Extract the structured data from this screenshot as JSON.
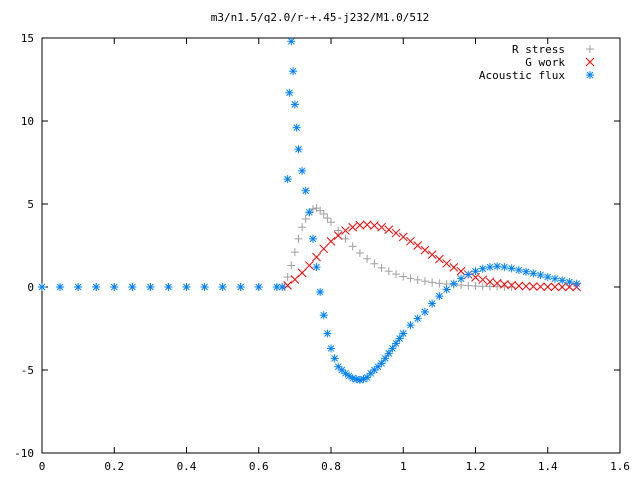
{
  "chart_data": {
    "type": "scatter",
    "title": "m3/n1.5/q2.0/r-+.45-j232/M1.0/512",
    "xlabel": "",
    "ylabel": "",
    "xlim": [
      0,
      1.6
    ],
    "ylim": [
      -10,
      15
    ],
    "x_ticks": [
      0,
      0.2,
      0.4,
      0.6,
      0.8,
      1.0,
      1.2,
      1.4,
      1.6
    ],
    "x_tick_labels": [
      "0",
      "0.2",
      "0.4",
      "0.6",
      "0.8",
      "1",
      "1.2",
      "1.4",
      "1.6"
    ],
    "y_ticks": [
      -10,
      -5,
      0,
      5,
      10,
      15
    ],
    "y_tick_labels": [
      "-10",
      "-5",
      "0",
      "5",
      "10",
      "15"
    ],
    "grid": false,
    "legend_position": "top-right",
    "series": [
      {
        "name": "R stress",
        "marker": "plus",
        "color": "#a0a0a0",
        "x": [
          0.0,
          0.05,
          0.1,
          0.15,
          0.2,
          0.25,
          0.3,
          0.35,
          0.4,
          0.45,
          0.5,
          0.55,
          0.6,
          0.65,
          0.672,
          0.68,
          0.69,
          0.7,
          0.71,
          0.72,
          0.73,
          0.74,
          0.75,
          0.76,
          0.77,
          0.78,
          0.79,
          0.8,
          0.82,
          0.84,
          0.86,
          0.88,
          0.9,
          0.92,
          0.94,
          0.96,
          0.98,
          1.0,
          1.02,
          1.04,
          1.06,
          1.08,
          1.1,
          1.12,
          1.14,
          1.16,
          1.18,
          1.2,
          1.22,
          1.24,
          1.26,
          1.28,
          1.3
        ],
        "y": [
          0,
          0,
          0,
          0,
          0,
          0,
          0,
          0,
          0,
          0,
          0,
          0,
          0,
          0,
          0,
          0.6,
          1.3,
          2.1,
          2.9,
          3.6,
          4.1,
          4.5,
          4.7,
          4.75,
          4.6,
          4.4,
          4.15,
          3.9,
          3.4,
          2.9,
          2.45,
          2.05,
          1.7,
          1.4,
          1.15,
          0.95,
          0.78,
          0.63,
          0.52,
          0.43,
          0.35,
          0.28,
          0.22,
          0.18,
          0.14,
          0.11,
          0.08,
          0.06,
          0.04,
          0.03,
          0.02,
          0.01,
          0
        ]
      },
      {
        "name": "G work",
        "marker": "cross",
        "color": "#ff0000",
        "x": [
          0.68,
          0.7,
          0.72,
          0.74,
          0.76,
          0.78,
          0.8,
          0.82,
          0.84,
          0.86,
          0.88,
          0.9,
          0.92,
          0.94,
          0.96,
          0.98,
          1.0,
          1.02,
          1.04,
          1.06,
          1.08,
          1.1,
          1.12,
          1.14,
          1.16,
          1.18,
          1.2,
          1.22,
          1.24,
          1.26,
          1.28,
          1.3,
          1.32,
          1.34,
          1.36,
          1.38,
          1.4,
          1.42,
          1.44,
          1.46,
          1.48
        ],
        "y": [
          0.1,
          0.45,
          0.85,
          1.3,
          1.8,
          2.3,
          2.75,
          3.1,
          3.4,
          3.6,
          3.72,
          3.75,
          3.7,
          3.6,
          3.45,
          3.25,
          3.02,
          2.76,
          2.5,
          2.22,
          1.95,
          1.68,
          1.42,
          1.18,
          0.95,
          0.75,
          0.58,
          0.44,
          0.32,
          0.23,
          0.16,
          0.11,
          0.07,
          0.05,
          0.03,
          0.02,
          0.01,
          0.01,
          0.0,
          0.0,
          0.0
        ]
      },
      {
        "name": "Acoustic flux",
        "marker": "star",
        "color": "#0080ff",
        "x": [
          0.0,
          0.05,
          0.1,
          0.15,
          0.2,
          0.25,
          0.3,
          0.35,
          0.4,
          0.45,
          0.5,
          0.55,
          0.6,
          0.65,
          0.665,
          0.68,
          0.685,
          0.69,
          0.695,
          0.7,
          0.705,
          0.71,
          0.72,
          0.73,
          0.74,
          0.75,
          0.76,
          0.77,
          0.78,
          0.79,
          0.8,
          0.81,
          0.82,
          0.83,
          0.84,
          0.85,
          0.86,
          0.87,
          0.88,
          0.89,
          0.9,
          0.91,
          0.92,
          0.93,
          0.94,
          0.95,
          0.96,
          0.97,
          0.98,
          0.99,
          1.0,
          1.02,
          1.04,
          1.06,
          1.08,
          1.1,
          1.12,
          1.14,
          1.16,
          1.18,
          1.2,
          1.22,
          1.24,
          1.26,
          1.28,
          1.3,
          1.32,
          1.34,
          1.36,
          1.38,
          1.4,
          1.42,
          1.44,
          1.46,
          1.48
        ],
        "y": [
          0,
          0,
          0,
          0,
          0,
          0,
          0,
          0,
          0,
          0,
          0,
          0,
          0,
          0,
          0,
          6.5,
          11.7,
          14.8,
          13.0,
          11.0,
          9.6,
          8.3,
          7.0,
          5.8,
          4.5,
          2.9,
          1.2,
          -0.3,
          -1.7,
          -2.8,
          -3.7,
          -4.3,
          -4.8,
          -5.0,
          -5.2,
          -5.35,
          -5.5,
          -5.55,
          -5.6,
          -5.55,
          -5.45,
          -5.2,
          -5.0,
          -4.8,
          -4.6,
          -4.3,
          -4.0,
          -3.7,
          -3.4,
          -3.1,
          -2.8,
          -2.3,
          -1.9,
          -1.5,
          -1.0,
          -0.55,
          -0.15,
          0.2,
          0.5,
          0.75,
          0.95,
          1.1,
          1.2,
          1.25,
          1.2,
          1.12,
          1.02,
          0.92,
          0.82,
          0.72,
          0.6,
          0.5,
          0.4,
          0.3,
          0.2
        ]
      }
    ]
  }
}
